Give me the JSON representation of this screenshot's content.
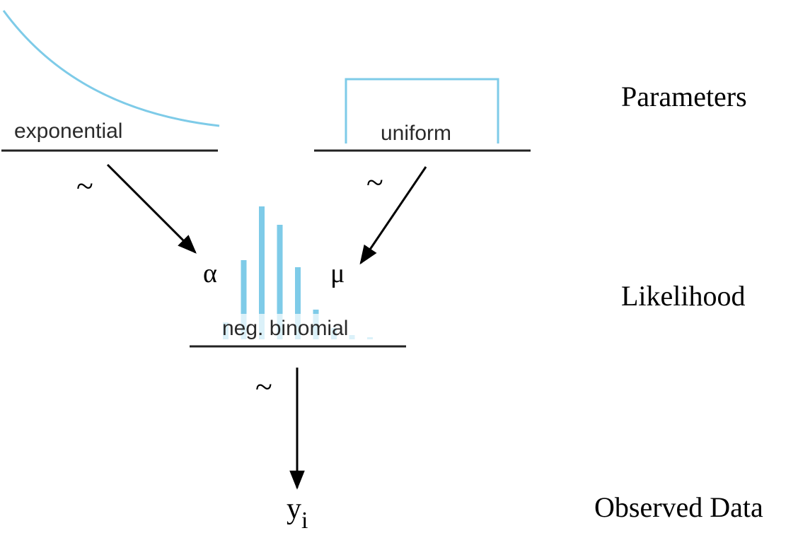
{
  "colors": {
    "distribution": "#7ecbe8",
    "line": "#222222",
    "text": "#000000"
  },
  "levels": {
    "parameters": "Parameters",
    "likelihood": "Likelihood",
    "observed": "Observed Data"
  },
  "nodes": {
    "exponential": {
      "label": "exponential",
      "tilde": "~"
    },
    "uniform": {
      "label": "uniform",
      "tilde": "~"
    },
    "negbinomial": {
      "label": "neg. binomial",
      "tilde": "~",
      "param_left": "α",
      "param_right": "μ",
      "bar_heights": [
        0.12,
        0.56,
        0.94,
        0.81,
        0.51,
        0.21,
        0.08,
        0.03,
        0.015
      ]
    },
    "observed": {
      "symbol": "y",
      "subscript": "i"
    }
  }
}
